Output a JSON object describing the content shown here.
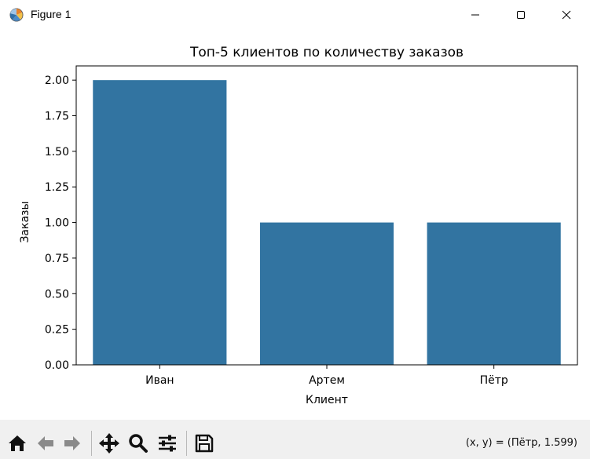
{
  "window": {
    "title": "Figure 1",
    "icon": "matplotlib-logo-icon",
    "controls": [
      "minimize-icon",
      "maximize-icon",
      "close-icon"
    ]
  },
  "chart_data": {
    "type": "bar",
    "title": "Топ-5 клиентов по количеству заказов",
    "xlabel": "Клиент",
    "ylabel": "Заказы",
    "categories": [
      "Иван",
      "Артем",
      "Пётр"
    ],
    "values": [
      2,
      1,
      1
    ],
    "ylim": [
      0,
      2.1
    ],
    "yticks": [
      "0.00",
      "0.25",
      "0.50",
      "0.75",
      "1.00",
      "1.25",
      "1.50",
      "1.75",
      "2.00"
    ],
    "bar_color": "#3274a1",
    "grid": false
  },
  "toolbar": {
    "buttons": [
      "home-icon",
      "back-icon",
      "forward-icon",
      "pan-icon",
      "zoom-icon",
      "configure-subplots-icon",
      "save-icon"
    ],
    "coords": "(x, y) = (Пётр, 1.599)"
  }
}
